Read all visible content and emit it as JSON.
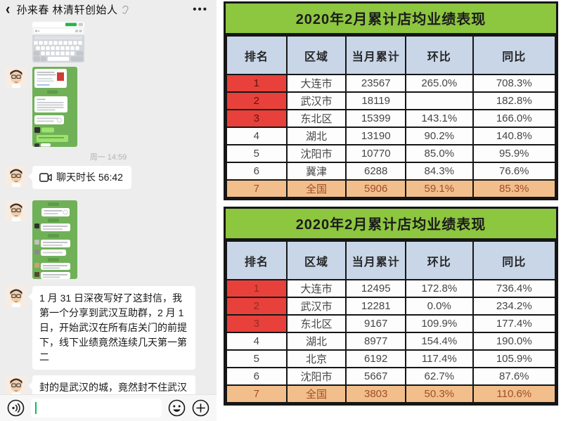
{
  "chat": {
    "header": {
      "back_icon": "‹",
      "title": "孙来春 林清轩创始人",
      "ear_icon": "ear-icon",
      "more_icon": "•••"
    },
    "image_messages": [
      {
        "name": "keyboard-input-screenshot"
      },
      {
        "name": "wechat-chat-screenshot-1"
      },
      {
        "name": "wechat-chat-screenshot-2"
      }
    ],
    "timestamp": "周一 14:59",
    "video_call": {
      "icon": "video-camera-icon",
      "text": "聊天时长 56:42"
    },
    "text_messages": [
      "1 月 31 日深夜写好了这封信，我第一个分享到武汉互助群，2 月 1 日，开始武汉在所有店关门的前提下，线下业绩竟然连续几天第一第二",
      "封的是武汉的城，竟然封不住武汉林清轩门店业绩"
    ],
    "input_bar": {
      "icons": [
        "voice-icon",
        "emoji-icon",
        "plus-icon"
      ],
      "value": ""
    }
  },
  "tables": [
    {
      "title": "2020年2月累计店均业绩表现",
      "headers": [
        "排名",
        "区域",
        "当月累计",
        "环比",
        "同比"
      ],
      "rows": [
        {
          "rank": "1",
          "region": "大连市",
          "value": "23567",
          "mom": "265.0%",
          "yoy": "708.3%",
          "rank_red": true
        },
        {
          "rank": "2",
          "region": "武汉市",
          "value": "18119",
          "mom": "",
          "yoy": "182.8%",
          "rank_red": true
        },
        {
          "rank": "3",
          "region": "东北区",
          "value": "15399",
          "mom": "143.1%",
          "yoy": "166.0%",
          "rank_red": true
        },
        {
          "rank": "4",
          "region": "湖北",
          "value": "13190",
          "mom": "90.2%",
          "yoy": "140.8%"
        },
        {
          "rank": "5",
          "region": "沈阳市",
          "value": "10770",
          "mom": "85.0%",
          "yoy": "95.9%"
        },
        {
          "rank": "6",
          "region": "冀津",
          "value": "6288",
          "mom": "84.3%",
          "yoy": "76.6%"
        },
        {
          "rank": "7",
          "region": "全国",
          "value": "5906",
          "mom": "59.1%",
          "yoy": "85.3%",
          "total": true
        }
      ]
    },
    {
      "title": "2020年2月累计店均业绩表现",
      "headers": [
        "排名",
        "区域",
        "当月累计",
        "环比",
        "同比"
      ],
      "rows": [
        {
          "rank": "1",
          "region": "大连市",
          "value": "12495",
          "mom": "172.8%",
          "yoy": "736.4%",
          "rank_red": true,
          "rank_faint": true
        },
        {
          "rank": "2",
          "region": "武汉市",
          "value": "12281",
          "mom": "0.0%",
          "yoy": "234.2%",
          "rank_red": true,
          "rank_faint": true
        },
        {
          "rank": "3",
          "region": "东北区",
          "value": "9167",
          "mom": "109.9%",
          "yoy": "177.4%",
          "rank_red": true,
          "rank_faint": true
        },
        {
          "rank": "4",
          "region": "湖北",
          "value": "8977",
          "mom": "154.4%",
          "yoy": "190.0%"
        },
        {
          "rank": "5",
          "region": "北京",
          "value": "6192",
          "mom": "117.4%",
          "yoy": "105.9%"
        },
        {
          "rank": "6",
          "region": "沈阳市",
          "value": "5667",
          "mom": "62.7%",
          "yoy": "87.6%"
        },
        {
          "rank": "7",
          "region": "全国",
          "value": "3803",
          "mom": "50.3%",
          "yoy": "110.6%",
          "total": true
        }
      ]
    }
  ],
  "colors": {
    "title_green": "#8dc63f",
    "header_blue": "#c9d6e8",
    "rank_red": "#e8413b",
    "total_orange": "#f2bf8c",
    "wechat_green": "#07c160",
    "panel_gray": "#ededed"
  }
}
